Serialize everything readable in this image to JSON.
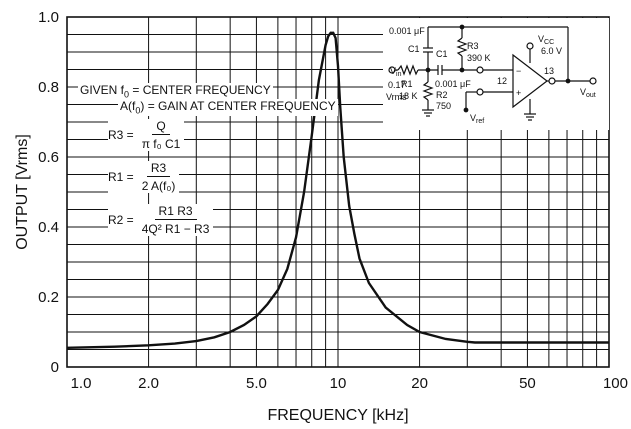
{
  "chart_data": {
    "type": "line",
    "xlabel": "FREQUENCY [kHz]",
    "ylabel": "OUTPUT [Vrms]",
    "xscale": "log",
    "xlim": [
      1.0,
      100
    ],
    "ylim": [
      0,
      1.0
    ],
    "xticks": [
      "1.0",
      "2.0",
      "5.0",
      "10",
      "20",
      "50",
      "100"
    ],
    "yticks": [
      "0",
      "0.2",
      "0.4",
      "0.6",
      "0.8",
      "1.0"
    ],
    "grid": true,
    "series": [
      {
        "x": [
          1.0,
          1.5,
          2.0,
          2.5,
          3.0,
          3.5,
          4.0,
          4.5,
          5.0,
          5.5,
          6.0,
          6.5,
          7.0,
          7.5,
          8.0,
          8.5,
          9.0,
          9.2,
          9.4,
          9.6,
          9.8,
          10.0,
          10.2,
          10.5,
          11.0,
          11.5,
          12.0,
          13.0,
          15.0,
          18.0,
          20.0,
          25.0,
          30.0,
          32.0,
          40.0,
          50.0,
          60.0,
          70.0,
          80.0,
          90.0,
          100.0
        ],
        "y": [
          0.055,
          0.058,
          0.062,
          0.067,
          0.074,
          0.085,
          0.1,
          0.12,
          0.145,
          0.18,
          0.22,
          0.28,
          0.37,
          0.5,
          0.66,
          0.82,
          0.92,
          0.945,
          0.955,
          0.955,
          0.94,
          0.86,
          0.74,
          0.6,
          0.46,
          0.38,
          0.31,
          0.24,
          0.17,
          0.12,
          0.1,
          0.08,
          0.072,
          0.07,
          0.07,
          0.07,
          0.07,
          0.07,
          0.07,
          0.07,
          0.07
        ]
      }
    ]
  },
  "notes": {
    "given_line1": "GIVEN f",
    "given_sub": "0",
    "given_rest": " = CENTER FREQUENCY",
    "given_line2": "A(f",
    "given_line2_sub": "0",
    "given_line2_rest": ") = GAIN AT CENTER FREQUENCY",
    "r3_lhs": "R3 =",
    "r3_num": "Q",
    "r3_den": "π f₀ C1",
    "r1_lhs": "R1 =",
    "r1_num": "R3",
    "r1_den": "2 A(f₀)",
    "r2_lhs": "R2 =",
    "r2_num": "R1 R3",
    "r2_den": "4Q² R1 − R3"
  },
  "schematic": {
    "cap_top": "0.001 μF",
    "c1_top": "C1",
    "c1_mid": "C1",
    "cap_mid": "0.001 μF",
    "r3": "R3",
    "r3_val": "390 K",
    "r1": "R1",
    "r1_val": "18 K",
    "r2": "R2",
    "r2_val": "750",
    "vin": "V",
    "vin_sub": "in",
    "vin_amp": "0.17",
    "vin_unit": "Vrms",
    "vcc": "V",
    "vcc_sub": "CC",
    "vcc_val": "6.0 V",
    "pin13": "13",
    "pin12": "12",
    "minus": "−",
    "plus": "+",
    "vout": "V",
    "vout_sub": "out",
    "vref": "V",
    "vref_sub": "ref"
  }
}
